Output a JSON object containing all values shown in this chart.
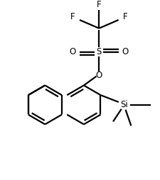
{
  "background": "#ffffff",
  "line_color": "#000000",
  "line_width": 1.6,
  "figure_width": 2.26,
  "figure_height": 2.52,
  "dpi": 100,
  "xlim": [
    0,
    226
  ],
  "ylim": [
    0,
    252
  ]
}
